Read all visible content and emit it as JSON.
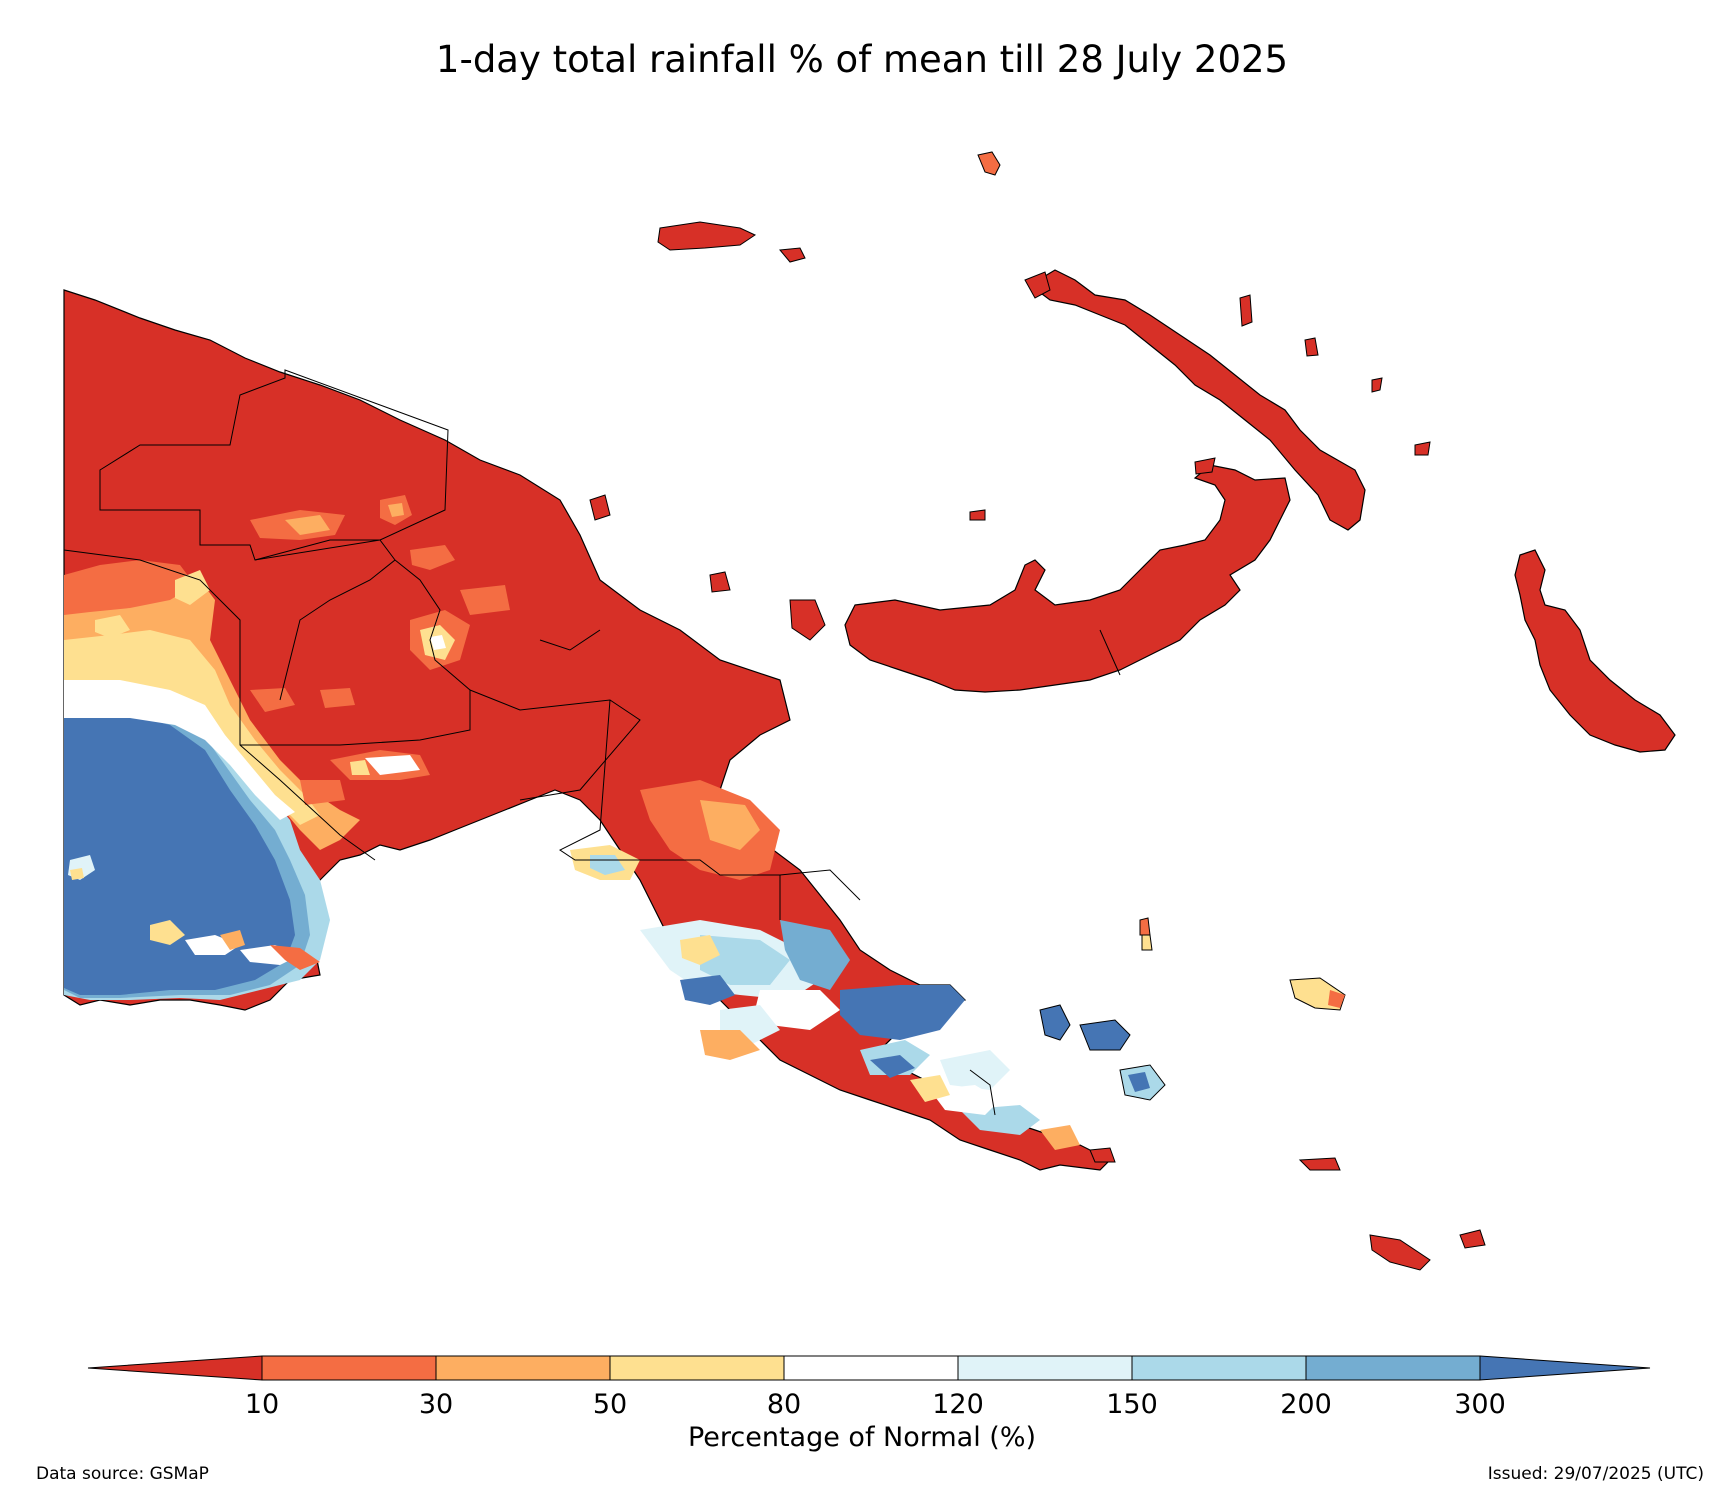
{
  "title": "1-day total rainfall % of mean till 28 July 2025",
  "colorbar": {
    "label": "Percentage of Normal (%)",
    "ticks": [
      "10",
      "30",
      "50",
      "80",
      "120",
      "150",
      "200",
      "300"
    ],
    "colors": [
      "#d73027",
      "#f46d43",
      "#fdae61",
      "#fee090",
      "#ffffff",
      "#e0f3f8",
      "#abd9e9",
      "#74add1",
      "#4575b4"
    ]
  },
  "footer": {
    "source": "Data source: GSMaP",
    "issued": "Issued: 29/07/2025 (UTC)"
  },
  "palette": {
    "deep_red": "#d73027",
    "orange": "#f46d43",
    "light_orange": "#fdae61",
    "pale_yellow": "#fee090",
    "white": "#ffffff",
    "pale_blue": "#e0f3f8",
    "light_blue": "#abd9e9",
    "mid_blue": "#74add1",
    "dark_blue": "#4575b4"
  }
}
